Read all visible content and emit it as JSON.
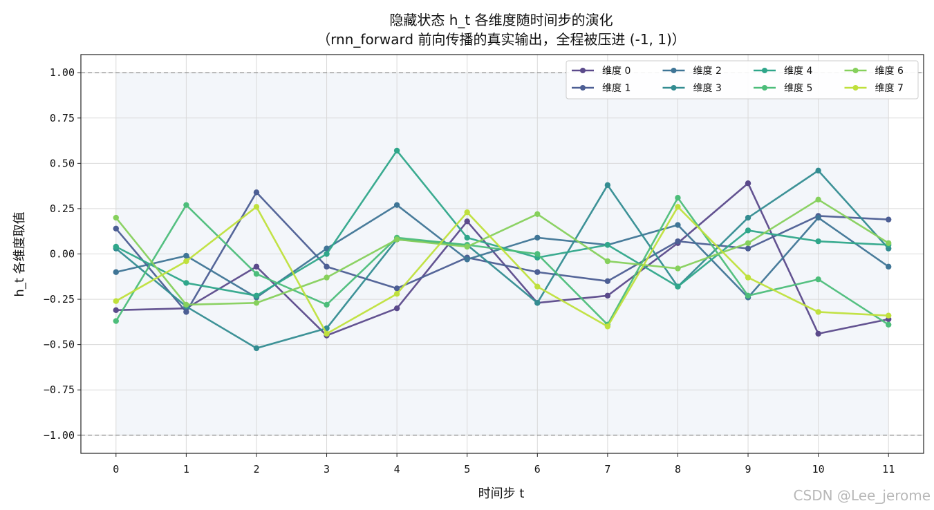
{
  "chart_data": {
    "type": "line",
    "title": "隐藏状态 h_t 各维度随时间步的演化",
    "subtitle": "（rnn_forward 前向传播的真实输出，全程被压进 (-1, 1)）",
    "xlabel": "时间步 t",
    "ylabel": "h_t 各维度取值",
    "x": [
      0,
      1,
      2,
      3,
      4,
      5,
      6,
      7,
      8,
      9,
      10,
      11
    ],
    "xticks": [
      "0",
      "1",
      "2",
      "3",
      "4",
      "5",
      "6",
      "7",
      "8",
      "9",
      "10",
      "11"
    ],
    "yticks": [
      "−1.00",
      "−0.75",
      "−0.50",
      "−0.25",
      "0.00",
      "0.25",
      "0.50",
      "0.75",
      "1.00"
    ],
    "ytick_values": [
      -1.0,
      -0.75,
      -0.5,
      -0.25,
      0.0,
      0.25,
      0.5,
      0.75,
      1.0
    ],
    "xlim": [
      -0.5,
      11.5
    ],
    "ylim": [
      -1.1,
      1.1
    ],
    "bounds": [
      -1,
      1
    ],
    "grid": true,
    "legend_position": "top-right",
    "series": [
      {
        "name": "维度 0",
        "color": "#5b4a8b",
        "values": [
          -0.31,
          -0.3,
          -0.07,
          -0.45,
          -0.3,
          0.18,
          -0.27,
          -0.23,
          0.06,
          0.39,
          -0.44,
          -0.36
        ]
      },
      {
        "name": "维度 1",
        "color": "#4c5e94",
        "values": [
          0.14,
          -0.32,
          0.34,
          -0.07,
          -0.19,
          -0.02,
          -0.1,
          -0.15,
          0.07,
          0.03,
          0.21,
          0.19
        ]
      },
      {
        "name": "维度 2",
        "color": "#3f7596",
        "values": [
          -0.1,
          -0.01,
          -0.24,
          0.03,
          0.27,
          -0.03,
          0.09,
          0.05,
          0.16,
          -0.24,
          0.2,
          -0.07
        ]
      },
      {
        "name": "维度 3",
        "color": "#338c91",
        "values": [
          0.03,
          -0.29,
          -0.52,
          -0.41,
          0.08,
          0.05,
          -0.27,
          0.38,
          -0.18,
          0.2,
          0.46,
          0.03
        ]
      },
      {
        "name": "维度 4",
        "color": "#2fa68a",
        "values": [
          0.04,
          -0.16,
          -0.23,
          0.0,
          0.57,
          0.09,
          -0.02,
          0.05,
          -0.18,
          0.13,
          0.07,
          0.05
        ]
      },
      {
        "name": "维度 5",
        "color": "#4cbd7a",
        "values": [
          -0.37,
          0.27,
          -0.11,
          -0.28,
          0.09,
          0.05,
          0.0,
          -0.39,
          0.31,
          -0.23,
          -0.14,
          -0.39
        ]
      },
      {
        "name": "维度 6",
        "color": "#86d05c",
        "values": [
          0.2,
          -0.28,
          -0.27,
          -0.13,
          0.08,
          0.04,
          0.22,
          -0.04,
          -0.08,
          0.06,
          0.3,
          0.06
        ]
      },
      {
        "name": "维度 7",
        "color": "#bfe03c",
        "values": [
          -0.26,
          -0.04,
          0.26,
          -0.44,
          -0.22,
          0.23,
          -0.18,
          -0.4,
          0.26,
          -0.13,
          -0.32,
          -0.34
        ]
      }
    ]
  },
  "watermark": "CSDN @Lee_jerome"
}
